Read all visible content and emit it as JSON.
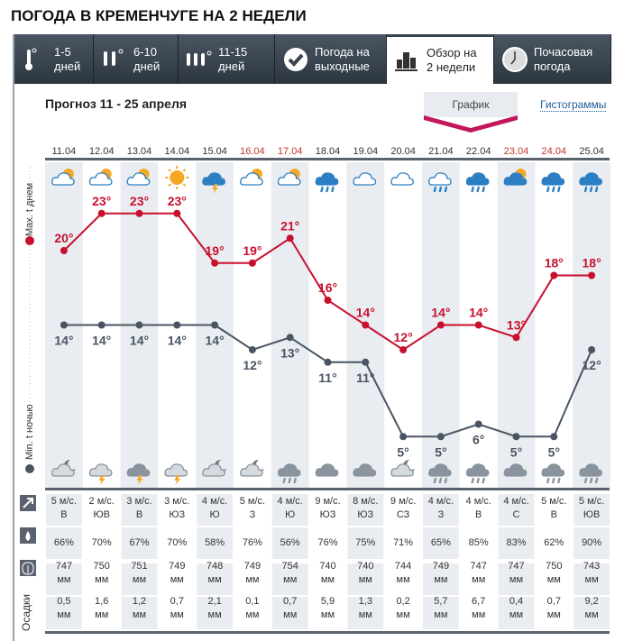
{
  "title": "ПОГОДА В КРЕМЕНЧУГЕ НА 2 НЕДЕЛИ",
  "tabs": [
    {
      "label1": "1-5",
      "label2": "дней",
      "icon": "thermometer-1-icon",
      "active": false
    },
    {
      "label1": "6-10",
      "label2": "дней",
      "icon": "thermometer-2-icon",
      "active": false
    },
    {
      "label1": "11-15",
      "label2": "дней",
      "icon": "thermometer-3-icon",
      "active": false
    },
    {
      "label1": "Погода на",
      "label2": "выходные",
      "icon": "checkmark-icon",
      "active": false
    },
    {
      "label1": "Обзор на",
      "label2": "2 недели",
      "icon": "bar-chart-icon",
      "active": true
    },
    {
      "label1": "Почасовая",
      "label2": "погода",
      "icon": "clock-icon",
      "active": false
    }
  ],
  "forecast_title": "Прогноз 11 - 25 апреля",
  "view_toggle": {
    "graph": "График",
    "histograms": "Гистограммы"
  },
  "side_labels": {
    "max": "Max. t днем",
    "min": "Min. t ночью",
    "precip": "Осадки"
  },
  "colors": {
    "max": "#c8102e",
    "min": "#4a5563",
    "weekend": "#c0392b",
    "accent": "#c2185b"
  },
  "days": [
    {
      "date": "11.04",
      "weekend": false,
      "day_icon": "partly-cloudy-icon",
      "night_icon": "cloud-moon-icon",
      "max": "20°",
      "min": "14°",
      "wind": "5 м/с.",
      "dir": "В",
      "hum": "66%",
      "press": "747",
      "precip": "0,5"
    },
    {
      "date": "12.04",
      "weekend": false,
      "day_icon": "partly-cloudy-icon",
      "night_icon": "cloud-thunder-icon",
      "max": "23°",
      "min": "14°",
      "wind": "2 м/с.",
      "dir": "ЮВ",
      "hum": "70%",
      "press": "750",
      "precip": "1,6"
    },
    {
      "date": "13.04",
      "weekend": false,
      "day_icon": "partly-cloudy-icon",
      "night_icon": "dark-cloud-thunder-icon",
      "max": "23°",
      "min": "14°",
      "wind": "3 м/с.",
      "dir": "В",
      "hum": "67%",
      "press": "751",
      "precip": "1,2"
    },
    {
      "date": "14.04",
      "weekend": false,
      "day_icon": "sun-icon",
      "night_icon": "cloud-thunder-icon",
      "max": "23°",
      "min": "14°",
      "wind": "3 м/с.",
      "dir": "ЮЗ",
      "hum": "70%",
      "press": "749",
      "precip": "0,7"
    },
    {
      "date": "15.04",
      "weekend": false,
      "day_icon": "thunderstorm-icon",
      "night_icon": "cloud-moon-icon",
      "max": "19°",
      "min": "14°",
      "wind": "4 м/с.",
      "dir": "Ю",
      "hum": "58%",
      "press": "748",
      "precip": "2,1"
    },
    {
      "date": "16.04",
      "weekend": true,
      "day_icon": "partly-cloudy-icon",
      "night_icon": "cloud-moon-icon",
      "max": "19°",
      "min": "12°",
      "wind": "5 м/с.",
      "dir": "З",
      "hum": "76%",
      "press": "749",
      "precip": "0,1"
    },
    {
      "date": "17.04",
      "weekend": true,
      "day_icon": "partly-cloudy-icon",
      "night_icon": "cloud-rain-icon",
      "max": "21°",
      "min": "13°",
      "wind": "4 м/с.",
      "dir": "Ю",
      "hum": "56%",
      "press": "754",
      "precip": "0,7"
    },
    {
      "date": "18.04",
      "weekend": false,
      "day_icon": "rain-icon",
      "night_icon": "cloud-icon",
      "max": "16°",
      "min": "11°",
      "wind": "9 м/с.",
      "dir": "ЮЗ",
      "hum": "76%",
      "press": "740",
      "precip": "5,9"
    },
    {
      "date": "19.04",
      "weekend": false,
      "day_icon": "cloud-icon",
      "night_icon": "cloud-icon",
      "max": "14°",
      "min": "11°",
      "wind": "8 м/с.",
      "dir": "ЮЗ",
      "hum": "75%",
      "press": "740",
      "precip": "1,3"
    },
    {
      "date": "20.04",
      "weekend": false,
      "day_icon": "cloud-icon",
      "night_icon": "cloud-moon-icon",
      "max": "12°",
      "min": "5°",
      "wind": "9 м/с.",
      "dir": "СЗ",
      "hum": "71%",
      "press": "744",
      "precip": "0,2"
    },
    {
      "date": "21.04",
      "weekend": false,
      "day_icon": "light-rain-icon",
      "night_icon": "cloud-rain-icon",
      "max": "14°",
      "min": "5°",
      "wind": "4 м/с.",
      "dir": "З",
      "hum": "65%",
      "press": "749",
      "precip": "5,7"
    },
    {
      "date": "22.04",
      "weekend": false,
      "day_icon": "rain-icon",
      "night_icon": "cloud-rain-icon",
      "max": "14°",
      "min": "6°",
      "wind": "4 м/с.",
      "dir": "В",
      "hum": "85%",
      "press": "747",
      "precip": "6,7"
    },
    {
      "date": "23.04",
      "weekend": true,
      "day_icon": "dark-partly-cloudy-icon",
      "night_icon": "cloud-icon",
      "max": "13°",
      "min": "5°",
      "wind": "4 м/с.",
      "dir": "С",
      "hum": "83%",
      "press": "747",
      "precip": "0,4"
    },
    {
      "date": "24.04",
      "weekend": true,
      "day_icon": "rain-icon",
      "night_icon": "cloud-rain-icon",
      "max": "18°",
      "min": "5°",
      "wind": "5 м/с.",
      "dir": "В",
      "hum": "62%",
      "press": "750",
      "precip": "0,7"
    },
    {
      "date": "25.04",
      "weekend": false,
      "day_icon": "rain-icon",
      "night_icon": "cloud-rain-icon",
      "max": "18°",
      "min": "12°",
      "wind": "5 м/с.",
      "dir": "ЮВ",
      "hum": "90%",
      "press": "743",
      "precip": "9,2"
    }
  ],
  "units": {
    "pressure": "мм",
    "precip": "мм"
  }
}
